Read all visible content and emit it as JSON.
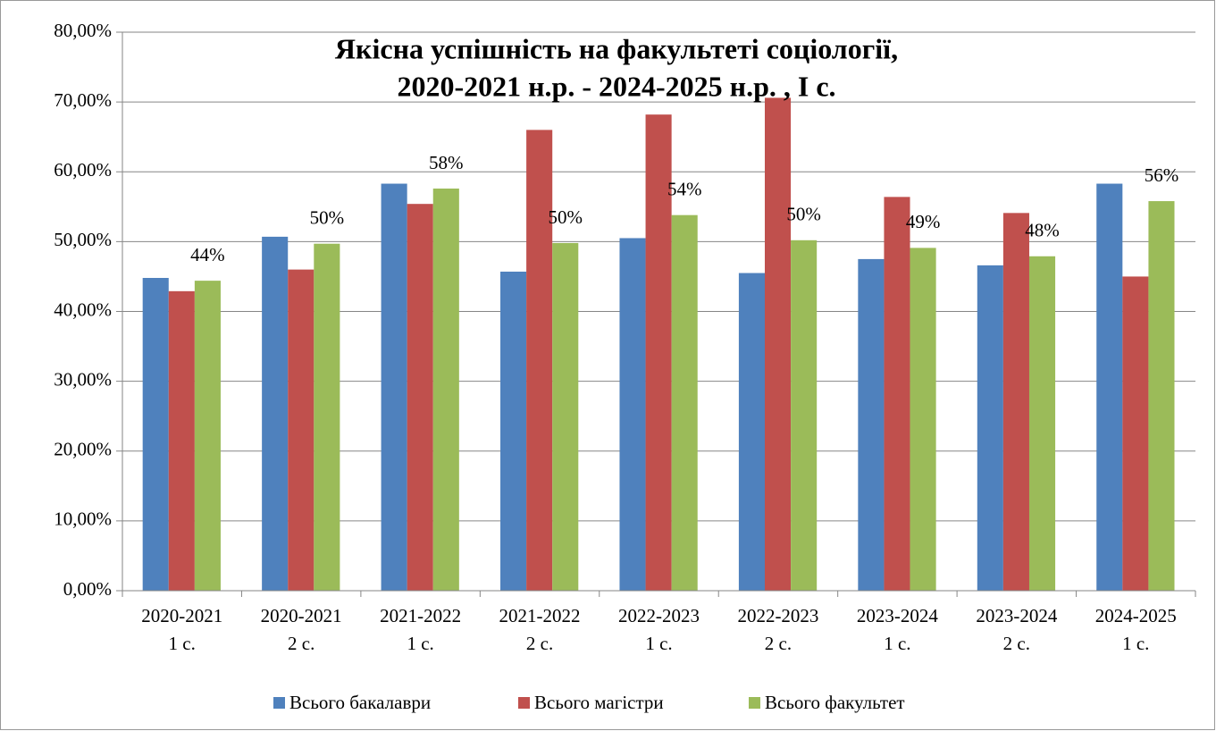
{
  "chart_data": {
    "type": "bar",
    "title": [
      "Якісна успішність на факультеті соціології,",
      "2020-2021 н.р. - 2024-2025 н.р. , І с."
    ],
    "categories": [
      [
        "2020-2021",
        "1 с."
      ],
      [
        "2020-2021",
        "2 с."
      ],
      [
        "2021-2022",
        "1 с."
      ],
      [
        "2021-2022",
        "2 с."
      ],
      [
        "2022-2023",
        "1 с."
      ],
      [
        "2022-2023",
        "2 с."
      ],
      [
        "2023-2024",
        "1 с."
      ],
      [
        "2023-2024",
        "2 с."
      ],
      [
        "2024-2025",
        "1 с."
      ]
    ],
    "series": [
      {
        "name": "Всього бакалаври",
        "color": "#4f81bd",
        "values": [
          44.8,
          50.7,
          58.3,
          45.7,
          50.5,
          45.5,
          47.5,
          46.6,
          58.3
        ]
      },
      {
        "name": "Всього магістри",
        "color": "#c0504d",
        "values": [
          42.9,
          46.0,
          55.4,
          66.0,
          68.2,
          70.6,
          56.4,
          54.1,
          45.0
        ]
      },
      {
        "name": "Всього факультет",
        "color": "#9bbb59",
        "values": [
          44.4,
          49.7,
          57.6,
          49.8,
          53.8,
          50.2,
          49.1,
          47.9,
          55.8
        ],
        "value_labels": [
          "44%",
          "50%",
          "58%",
          "50%",
          "54%",
          "50%",
          "49%",
          "48%",
          "56%"
        ]
      }
    ],
    "ylim": [
      0,
      80
    ],
    "yticks": [
      {
        "value": 0,
        "label": "0,00%"
      },
      {
        "value": 10,
        "label": "10,00%"
      },
      {
        "value": 20,
        "label": "20,00%"
      },
      {
        "value": 30,
        "label": "30,00%"
      },
      {
        "value": 40,
        "label": "40,00%"
      },
      {
        "value": 50,
        "label": "50,00%"
      },
      {
        "value": 60,
        "label": "60,00%"
      },
      {
        "value": 70,
        "label": "70,00%"
      },
      {
        "value": 80,
        "label": "80,00%"
      }
    ],
    "grid": true,
    "legend": "bottom"
  }
}
